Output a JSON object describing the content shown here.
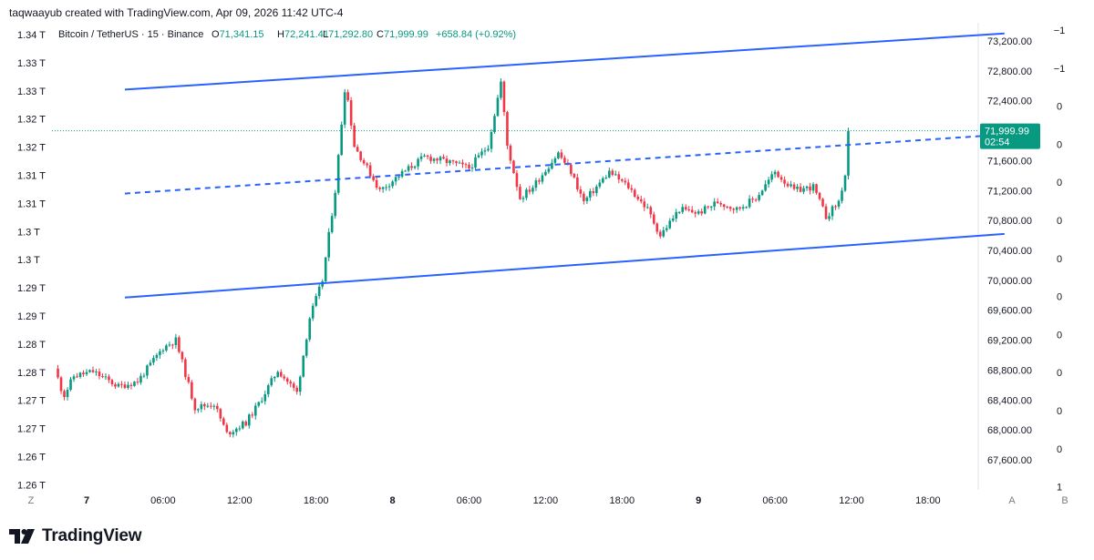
{
  "header": {
    "credit": "taqwaayub created with TradingView.com, Apr 09, 2026 11:42 UTC-4"
  },
  "legend": {
    "symbol": "Bitcoin / TetherUS · 15 · Binance",
    "o_label": "O",
    "o_value": "71,341.15",
    "h_label": "H",
    "h_value": "72,241.41",
    "l_label": "L",
    "l_value": "71,292.80",
    "c_label": "C",
    "c_value": "71,999.99",
    "change": "+658.84 (+0.92%)"
  },
  "footer": {
    "logo_text": "TradingView"
  },
  "colors": {
    "up": "#089981",
    "down": "#f23645",
    "channel": "#2962ff",
    "price_tag": "#089981",
    "grid_dotted": "#089981"
  },
  "chart_data": {
    "type": "candlestick",
    "title": "Bitcoin / TetherUS · 15 · Binance",
    "price_axis": {
      "side": "right",
      "ticks": [
        "73,200.00",
        "72,800.00",
        "72,400.00",
        "72,000.00",
        "71,600.00",
        "71,200.00",
        "70,800.00",
        "70,400.00",
        "70,000.00",
        "69,600.00",
        "69,200.00",
        "68,800.00",
        "68,400.00",
        "68,000.00",
        "67,600.00"
      ],
      "tick_values": [
        73200,
        72800,
        72400,
        72000,
        71600,
        71200,
        70800,
        70400,
        70000,
        69600,
        69200,
        68800,
        68400,
        68000,
        67600
      ],
      "ylim": [
        67400,
        73350
      ],
      "current_price": "71,999.99",
      "countdown": "02:54"
    },
    "left_axis": {
      "ticks": [
        "1.34 T",
        "1.33 T",
        "1.33 T",
        "1.32 T",
        "1.32 T",
        "1.31 T",
        "1.31 T",
        "1.3 T",
        "1.3 T",
        "1.29 T",
        "1.29 T",
        "1.28 T",
        "1.28 T",
        "1.27 T",
        "1.27 T",
        "1.26 T",
        "1.26 T"
      ]
    },
    "far_right_axis": {
      "ticks": [
        "−1",
        "−1",
        "0",
        "0",
        "0",
        "0",
        "0",
        "0",
        "0",
        "0",
        "0",
        "0",
        "1"
      ]
    },
    "time_axis": {
      "ticks": [
        "7",
        "06:00",
        "12:00",
        "18:00",
        "8",
        "06:00",
        "12:00",
        "18:00",
        "9",
        "06:00",
        "12:00",
        "18:00"
      ],
      "bold": [
        true,
        false,
        false,
        false,
        true,
        false,
        false,
        false,
        true,
        false,
        false,
        false
      ],
      "hours": [
        0,
        6,
        12,
        18,
        24,
        30,
        36,
        42,
        48,
        54,
        60,
        66
      ],
      "left_marker": "Z",
      "right_markers": [
        "A",
        "B"
      ]
    },
    "channel": {
      "upper": [
        {
          "t": 3,
          "p": 72550
        },
        {
          "t": 72,
          "p": 73300
        }
      ],
      "middle": [
        {
          "t": 3,
          "p": 71160
        },
        {
          "t": 72,
          "p": 71950
        }
      ],
      "lower": [
        {
          "t": 3,
          "p": 69770
        },
        {
          "t": 72,
          "p": 70620
        }
      ]
    },
    "price_path": [
      {
        "t": -2.5,
        "p": 68820
      },
      {
        "t": -1.8,
        "p": 68450
      },
      {
        "t": -1,
        "p": 68720
      },
      {
        "t": 0.5,
        "p": 68780
      },
      {
        "t": 1.5,
        "p": 68680
      },
      {
        "t": 2.5,
        "p": 68580
      },
      {
        "t": 4,
        "p": 68650
      },
      {
        "t": 6,
        "p": 69100
      },
      {
        "t": 7,
        "p": 69200
      },
      {
        "t": 7.5,
        "p": 68900
      },
      {
        "t": 8.5,
        "p": 68300
      },
      {
        "t": 10,
        "p": 68350
      },
      {
        "t": 11,
        "p": 67950
      },
      {
        "t": 12.5,
        "p": 68100
      },
      {
        "t": 13.5,
        "p": 68350
      },
      {
        "t": 15,
        "p": 68800
      },
      {
        "t": 16.5,
        "p": 68500
      },
      {
        "t": 17.5,
        "p": 69500
      },
      {
        "t": 18.5,
        "p": 70000
      },
      {
        "t": 19.5,
        "p": 71200
      },
      {
        "t": 20.3,
        "p": 72650
      },
      {
        "t": 21,
        "p": 71800
      },
      {
        "t": 23,
        "p": 71200
      },
      {
        "t": 24.5,
        "p": 71400
      },
      {
        "t": 26.5,
        "p": 71650
      },
      {
        "t": 28,
        "p": 71600
      },
      {
        "t": 30,
        "p": 71500
      },
      {
        "t": 31.5,
        "p": 71800
      },
      {
        "t": 32.5,
        "p": 72650
      },
      {
        "t": 33,
        "p": 71800
      },
      {
        "t": 34,
        "p": 71100
      },
      {
        "t": 35,
        "p": 71250
      },
      {
        "t": 37,
        "p": 71700
      },
      {
        "t": 38,
        "p": 71450
      },
      {
        "t": 39,
        "p": 71050
      },
      {
        "t": 41,
        "p": 71450
      },
      {
        "t": 42.5,
        "p": 71250
      },
      {
        "t": 44,
        "p": 70950
      },
      {
        "t": 45,
        "p": 70600
      },
      {
        "t": 46.5,
        "p": 70950
      },
      {
        "t": 48,
        "p": 70900
      },
      {
        "t": 49.5,
        "p": 71050
      },
      {
        "t": 51,
        "p": 70950
      },
      {
        "t": 52.5,
        "p": 71100
      },
      {
        "t": 54,
        "p": 71450
      },
      {
        "t": 55.5,
        "p": 71200
      },
      {
        "t": 57,
        "p": 71250
      },
      {
        "t": 58,
        "p": 70850
      },
      {
        "t": 59,
        "p": 71050
      },
      {
        "t": 59.5,
        "p": 71400
      },
      {
        "t": 59.8,
        "p": 71999.99
      }
    ]
  }
}
